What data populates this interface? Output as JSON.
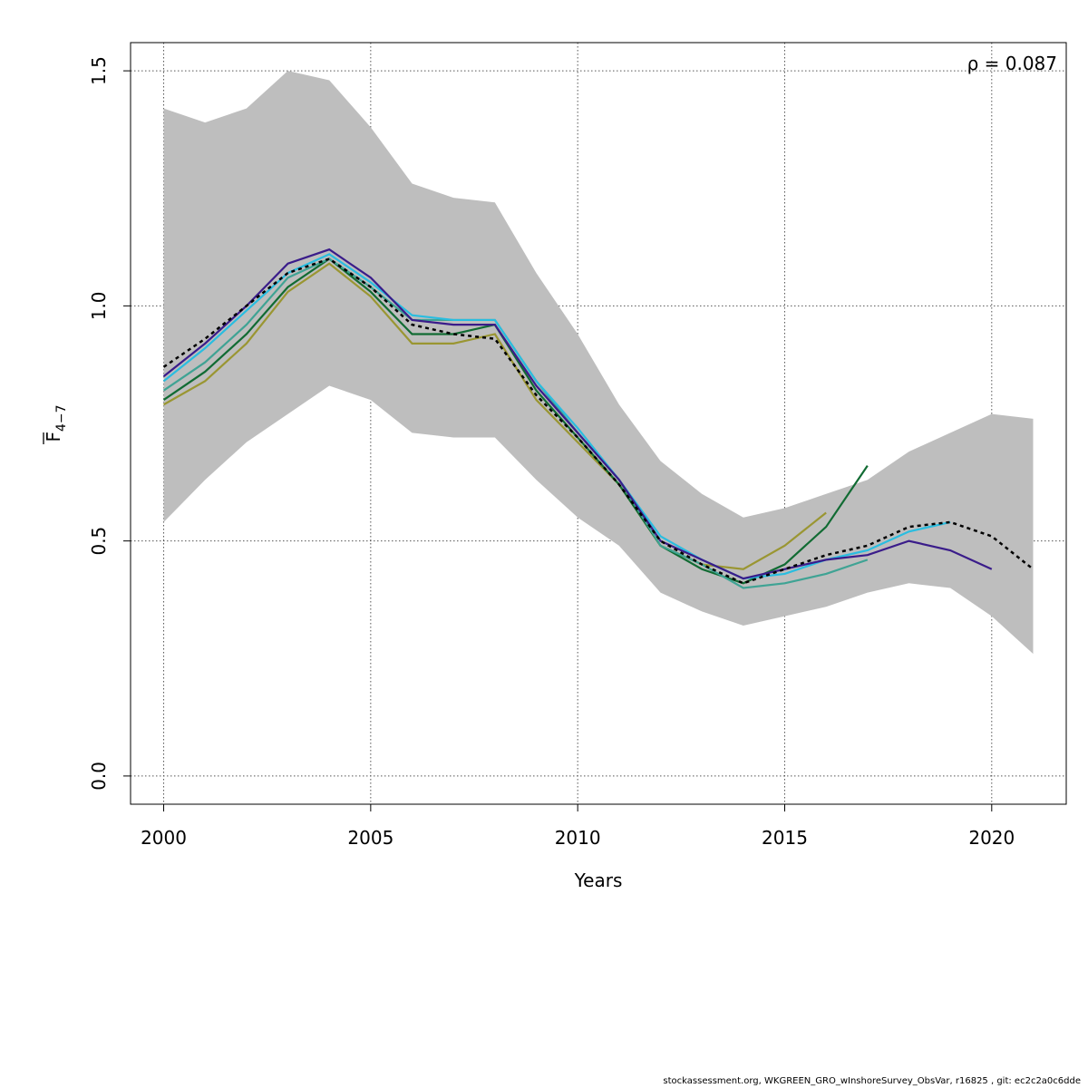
{
  "chart_data": {
    "type": "line",
    "xlabel": "Years",
    "ylabel": {
      "base": "F",
      "subscript": "4−7"
    },
    "annotation": "ρ = 0.087",
    "xlim": [
      1999.2,
      2021.8
    ],
    "ylim": [
      -0.06,
      1.56
    ],
    "x_ticks": [
      2000,
      2005,
      2010,
      2015,
      2020
    ],
    "y_ticks": [
      0.0,
      0.5,
      1.0,
      1.5
    ],
    "y_tick_labels": [
      "0.0",
      "0.5",
      "1.0",
      "1.5"
    ],
    "grid": true,
    "confidence_band": {
      "x": [
        2000,
        2001,
        2002,
        2003,
        2004,
        2005,
        2006,
        2007,
        2008,
        2009,
        2010,
        2011,
        2012,
        2013,
        2014,
        2015,
        2016,
        2017,
        2018,
        2019,
        2020,
        2021
      ],
      "upper": [
        1.42,
        1.39,
        1.42,
        1.5,
        1.48,
        1.38,
        1.26,
        1.23,
        1.22,
        1.07,
        0.94,
        0.79,
        0.67,
        0.6,
        0.55,
        0.57,
        0.6,
        0.63,
        0.69,
        0.73,
        0.77,
        0.76
      ],
      "lower": [
        0.54,
        0.63,
        0.71,
        0.77,
        0.83,
        0.8,
        0.73,
        0.72,
        0.72,
        0.63,
        0.55,
        0.49,
        0.39,
        0.35,
        0.32,
        0.34,
        0.36,
        0.39,
        0.41,
        0.4,
        0.34,
        0.26
      ],
      "color": "#bebebe"
    },
    "series": [
      {
        "color": "#000000",
        "dashed": true,
        "x": [
          2000,
          2001,
          2002,
          2003,
          2004,
          2005,
          2006,
          2007,
          2008,
          2009,
          2010,
          2011,
          2012,
          2013,
          2014,
          2015,
          2016,
          2017,
          2018,
          2019,
          2020,
          2021
        ],
        "values": [
          0.87,
          0.93,
          1.0,
          1.07,
          1.1,
          1.04,
          0.96,
          0.94,
          0.93,
          0.81,
          0.72,
          0.62,
          0.5,
          0.45,
          0.41,
          0.44,
          0.47,
          0.49,
          0.53,
          0.54,
          0.51,
          0.44
        ]
      },
      {
        "color": "#3a1c8a",
        "dashed": false,
        "x": [
          2000,
          2001,
          2002,
          2003,
          2004,
          2005,
          2006,
          2007,
          2008,
          2009,
          2010,
          2011,
          2012,
          2013,
          2014,
          2015,
          2016,
          2017,
          2018,
          2019,
          2020
        ],
        "values": [
          0.85,
          0.92,
          1.0,
          1.09,
          1.12,
          1.06,
          0.97,
          0.96,
          0.96,
          0.83,
          0.73,
          0.63,
          0.5,
          0.46,
          0.42,
          0.44,
          0.46,
          0.47,
          0.5,
          0.48,
          0.44
        ]
      },
      {
        "color": "#29bde0",
        "dashed": false,
        "x": [
          2000,
          2001,
          2002,
          2003,
          2004,
          2005,
          2006,
          2007,
          2008,
          2009,
          2010,
          2011,
          2012,
          2013,
          2014,
          2015,
          2016,
          2017,
          2018,
          2019
        ],
        "values": [
          0.84,
          0.91,
          0.99,
          1.07,
          1.11,
          1.05,
          0.98,
          0.97,
          0.97,
          0.84,
          0.74,
          0.63,
          0.51,
          0.46,
          0.42,
          0.43,
          0.46,
          0.48,
          0.52,
          0.54
        ]
      },
      {
        "color": "#3fa394",
        "dashed": false,
        "x": [
          2000,
          2001,
          2002,
          2003,
          2004,
          2005,
          2006,
          2007,
          2008,
          2009,
          2010,
          2011,
          2012,
          2013,
          2014,
          2015,
          2016,
          2017
        ],
        "values": [
          0.82,
          0.88,
          0.96,
          1.06,
          1.1,
          1.04,
          0.97,
          0.97,
          0.97,
          0.84,
          0.73,
          0.63,
          0.49,
          0.45,
          0.4,
          0.41,
          0.43,
          0.46
        ]
      },
      {
        "color": "#116b33",
        "dashed": false,
        "x": [
          2000,
          2001,
          2002,
          2003,
          2004,
          2005,
          2006,
          2007,
          2008,
          2009,
          2010,
          2011,
          2012,
          2013,
          2014,
          2015,
          2016,
          2017
        ],
        "values": [
          0.8,
          0.86,
          0.94,
          1.04,
          1.1,
          1.03,
          0.94,
          0.94,
          0.96,
          0.82,
          0.72,
          0.62,
          0.49,
          0.44,
          0.41,
          0.45,
          0.53,
          0.66
        ]
      },
      {
        "color": "#9a9632",
        "dashed": false,
        "x": [
          2000,
          2001,
          2002,
          2003,
          2004,
          2005,
          2006,
          2007,
          2008,
          2009,
          2010,
          2011,
          2012,
          2013,
          2014,
          2015,
          2016
        ],
        "values": [
          0.79,
          0.84,
          0.92,
          1.03,
          1.09,
          1.02,
          0.92,
          0.92,
          0.94,
          0.8,
          0.71,
          0.62,
          0.49,
          0.45,
          0.44,
          0.49,
          0.56
        ]
      }
    ]
  },
  "footer": "stockassessment.org, WKGREEN_GRO_wInshoreSurvey_ObsVar, r16825 , git: ec2c2a0c6dde"
}
